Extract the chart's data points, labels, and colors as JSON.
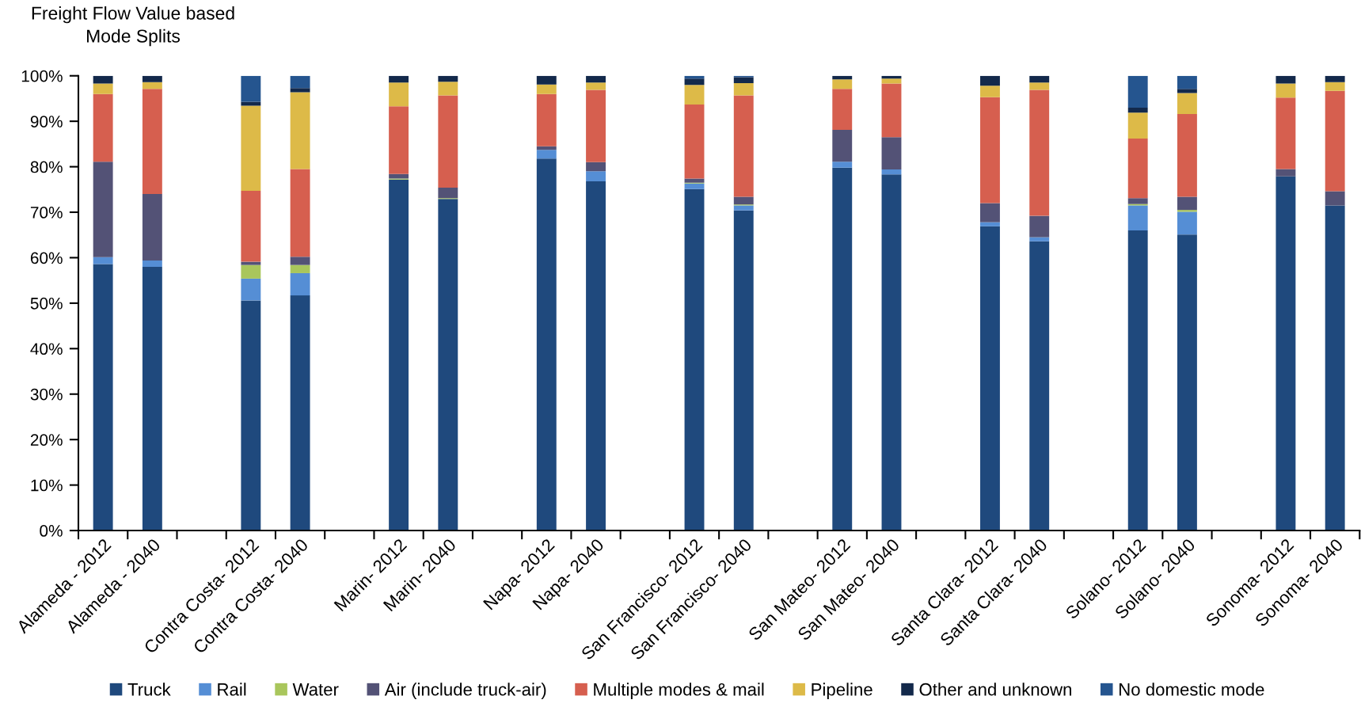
{
  "chart_data": {
    "type": "bar",
    "title": "Freight Flow Value based\nMode Splits",
    "categories": [
      "Alameda - 2012",
      "Alameda - 2040",
      null,
      "Contra Costa- 2012",
      "Contra Costa- 2040",
      null,
      "Marin- 2012",
      "Marin- 2040",
      null,
      "Napa- 2012",
      "Napa- 2040",
      null,
      "San Francisco- 2012",
      "San Francisco- 2040",
      null,
      "San Mateo- 2012",
      "San Mateo- 2040",
      null,
      "Santa Clara- 2012",
      "Santa Clara- 2040",
      null,
      "Solano- 2012",
      "Solano- 2040",
      null,
      "Sonoma- 2012",
      "Sonoma- 2040"
    ],
    "stacked": true,
    "series": [
      {
        "name": "Truck",
        "color": "#1f497d",
        "values": [
          58.6,
          58.0,
          null,
          50.6,
          51.7,
          null,
          77.2,
          72.9,
          null,
          81.8,
          76.8,
          null,
          75.1,
          70.4,
          null,
          79.8,
          78.3,
          null,
          66.9,
          63.6,
          null,
          66.0,
          65.1,
          null,
          77.9,
          71.5
        ]
      },
      {
        "name": "Rail",
        "color": "#558ed5",
        "values": [
          1.5,
          1.4,
          null,
          4.8,
          4.9,
          null,
          null,
          null,
          null,
          1.9,
          2.2,
          null,
          1.2,
          1.1,
          null,
          1.3,
          1.1,
          null,
          0.9,
          0.9,
          null,
          5.5,
          5.0,
          null,
          null,
          null
        ]
      },
      {
        "name": "Water",
        "color": "#a9c65c",
        "values": [
          null,
          null,
          null,
          3.0,
          1.8,
          null,
          0.2,
          0.2,
          null,
          null,
          null,
          null,
          0.2,
          0.2,
          null,
          null,
          null,
          null,
          null,
          null,
          null,
          0.3,
          0.4,
          null,
          null,
          null
        ]
      },
      {
        "name": "Air (include truck-air)",
        "color": "#535276",
        "values": [
          21.0,
          14.6,
          null,
          0.7,
          1.8,
          null,
          1.0,
          2.3,
          null,
          0.8,
          2.0,
          null,
          0.9,
          1.7,
          null,
          7.0,
          7.1,
          null,
          4.2,
          4.7,
          null,
          1.3,
          2.9,
          null,
          1.6,
          3.1
        ]
      },
      {
        "name": "Multiple modes & mail",
        "color": "#d65f4f",
        "values": [
          14.9,
          23.1,
          null,
          15.6,
          19.3,
          null,
          14.9,
          20.3,
          null,
          11.5,
          15.9,
          null,
          16.3,
          22.3,
          null,
          9.0,
          11.8,
          null,
          23.3,
          27.7,
          null,
          13.1,
          18.2,
          null,
          15.7,
          22.1
        ]
      },
      {
        "name": "Pipeline",
        "color": "#ddba48",
        "values": [
          2.3,
          1.5,
          null,
          18.7,
          16.9,
          null,
          5.2,
          3.0,
          null,
          2.1,
          1.6,
          null,
          4.3,
          2.7,
          null,
          2.1,
          1.1,
          null,
          2.5,
          1.6,
          null,
          5.7,
          4.6,
          null,
          3.1,
          1.9
        ]
      },
      {
        "name": "Other and unknown",
        "color": "#13294b",
        "values": [
          1.7,
          1.4,
          null,
          0.9,
          0.9,
          null,
          1.5,
          1.3,
          null,
          1.9,
          1.5,
          null,
          1.4,
          1.3,
          null,
          0.8,
          0.6,
          null,
          2.2,
          1.5,
          null,
          1.1,
          0.9,
          null,
          1.7,
          1.4
        ]
      },
      {
        "name": "No domestic mode",
        "color": "#25558f",
        "values": [
          null,
          null,
          null,
          5.7,
          2.7,
          null,
          null,
          null,
          null,
          null,
          null,
          null,
          0.6,
          0.3,
          null,
          null,
          null,
          null,
          null,
          null,
          null,
          7.0,
          2.9,
          null,
          null,
          null
        ]
      }
    ],
    "ylim": [
      0,
      100
    ],
    "yticks": [
      {
        "value": 0,
        "label": "0%"
      },
      {
        "value": 10,
        "label": "10%"
      },
      {
        "value": 20,
        "label": "20%"
      },
      {
        "value": 30,
        "label": "30%"
      },
      {
        "value": 40,
        "label": "40%"
      },
      {
        "value": 50,
        "label": "50%"
      },
      {
        "value": 60,
        "label": "60%"
      },
      {
        "value": 70,
        "label": "70%"
      },
      {
        "value": 80,
        "label": "80%"
      },
      {
        "value": 90,
        "label": "90%"
      },
      {
        "value": 100,
        "label": "100%"
      }
    ],
    "legend": "bottom"
  }
}
